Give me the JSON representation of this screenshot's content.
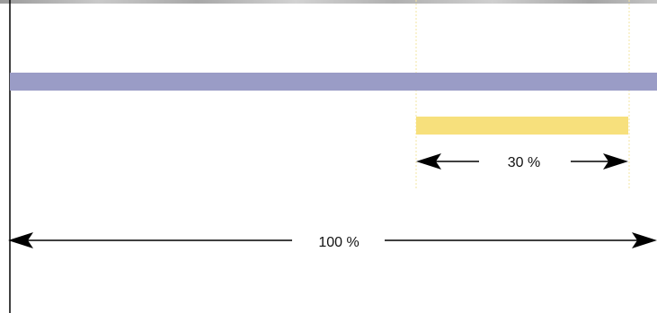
{
  "diagram": {
    "total_label": "100 %",
    "part_label": "30 %",
    "part_fraction": 0.3,
    "colors": {
      "full_bar": "#9a9cc6",
      "part_bar": "#f7e07c",
      "guide_lines": "#f5e9a8",
      "top_texture": "#b8b8b8",
      "axis": "#000000"
    }
  }
}
